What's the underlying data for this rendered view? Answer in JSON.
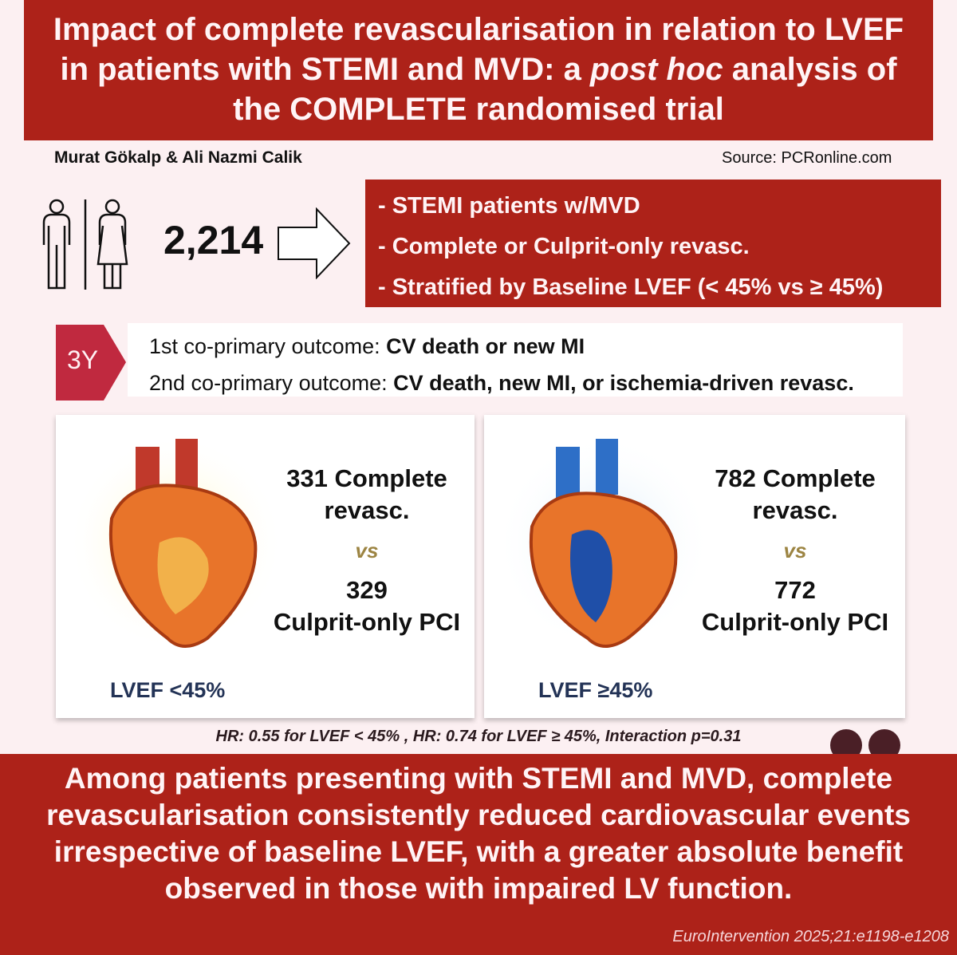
{
  "title": {
    "line1": "Impact of complete revascularisation in relation to LVEF",
    "line2a": "in patients with STEMI and MVD: a ",
    "line2b": "post hoc",
    "line2c": " analysis of",
    "line3": "the COMPLETE randomised trial"
  },
  "authors": "Murat Gökalp & Ali Nazmi Calik",
  "source": "Source: PCRonline.com",
  "population": {
    "count": "2,214",
    "icon": "people-male-female-icon"
  },
  "design": [
    "-  STEMI patients w/MVD",
    "-  Complete or Culprit-only revasc.",
    "-  Stratified by Baseline LVEF (< 45% vs ≥ 45%)"
  ],
  "followup": {
    "tag": "3Y",
    "o1_label": "1st co-primary outcome: ",
    "o1_value": "CV death or new MI",
    "o2_label": "2nd co-primary outcome: ",
    "o2_value": "CV death, new MI, or ischemia-driven revasc."
  },
  "groups": [
    {
      "complete": "331 Complete revasc.",
      "vs": "vs",
      "culprit_n": "329",
      "culprit": "Culprit-only PCI",
      "lvef": "LVEF <45%"
    },
    {
      "complete": "782 Complete revasc.",
      "vs": "vs",
      "culprit_n": "772",
      "culprit": "Culprit-only PCI",
      "lvef": "LVEF ≥45%"
    }
  ],
  "hr_text": "HR: 0.55 for LVEF < 45% , HR: 0.74 for LVEF ≥ 45%,  Interaction p=0.31",
  "conclusion": "Among patients presenting with STEMI and MVD, complete revascularisation consistently reduced cardiovascular events irrespective of baseline LVEF, with a greater absolute benefit observed in those with impaired LV function.",
  "citation": "EuroIntervention 2025;21:e1198-e1208",
  "colors": {
    "brand_red": "#ad2219",
    "tag_pink": "#c0293f",
    "vs_gold": "#9c8442"
  }
}
